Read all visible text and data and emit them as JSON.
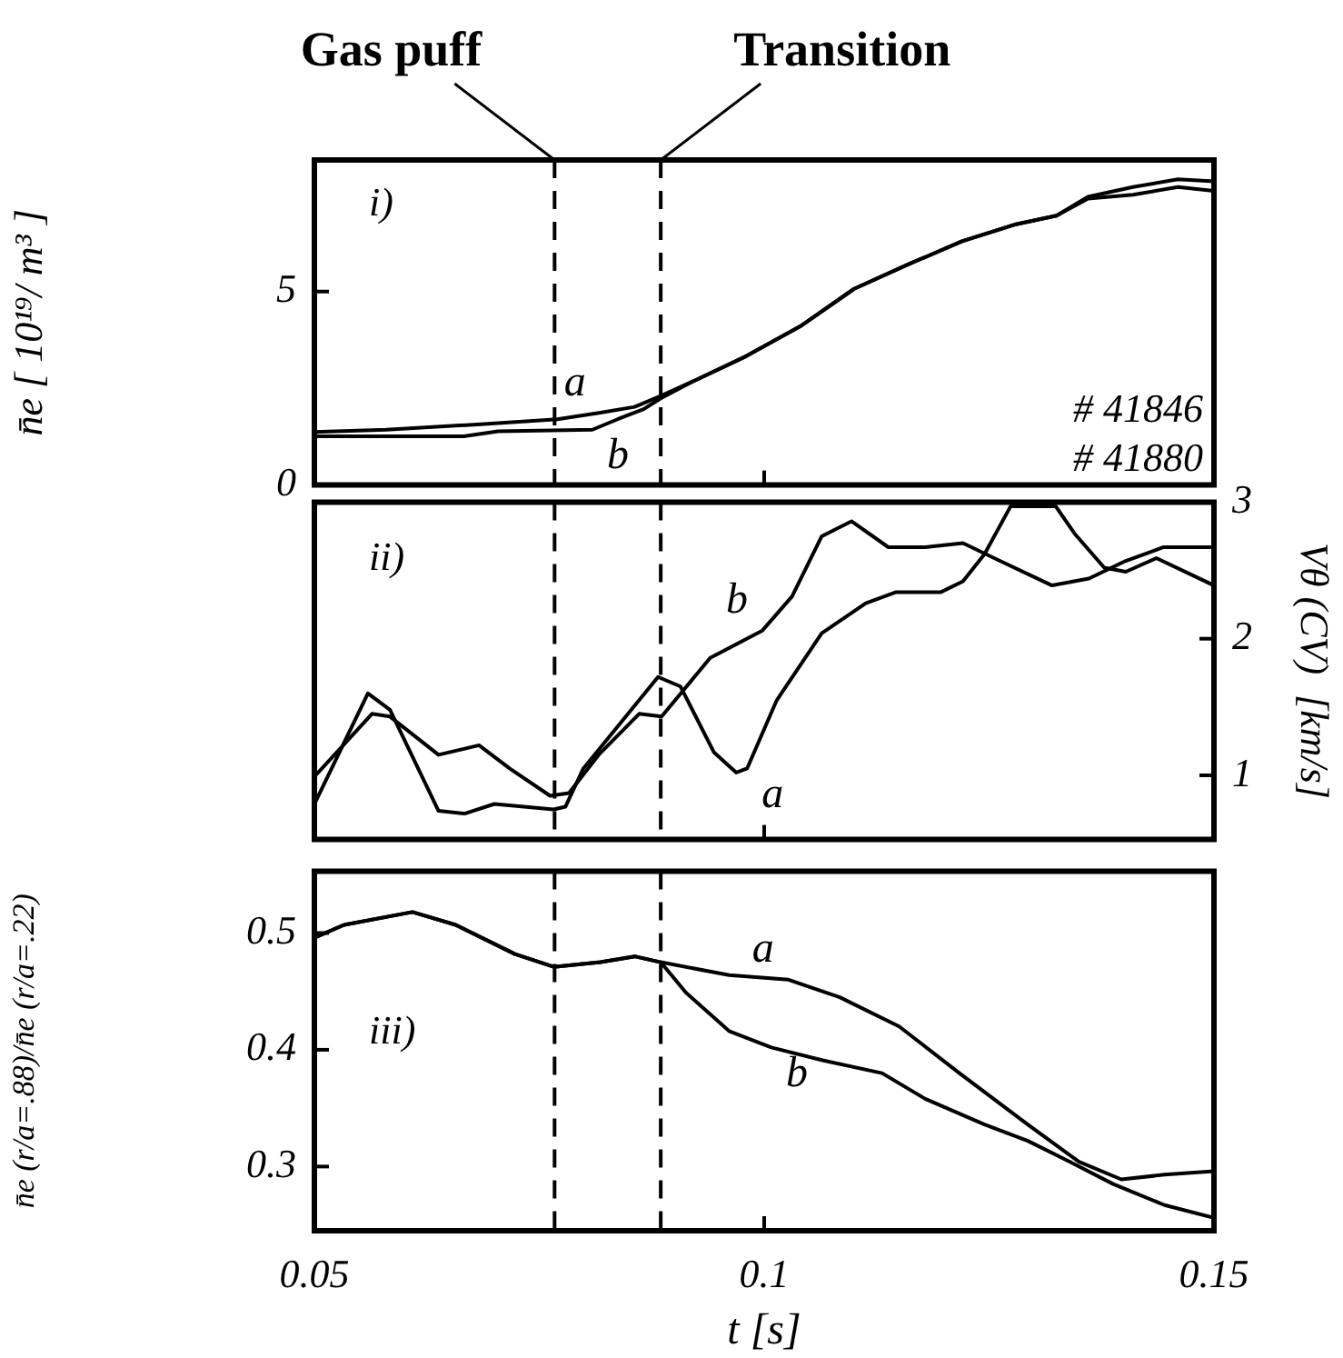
{
  "chart_data": [
    {
      "type": "line",
      "ylabel": "n̄e [ 10¹⁹/ m³ ]",
      "xlim": [
        0.05,
        0.15
      ],
      "xticks": [
        0.05,
        0.1,
        0.15
      ],
      "ylim": [
        0,
        8.4
      ],
      "yticks": [
        0,
        5
      ],
      "tick_labels": "y",
      "grid": false,
      "legend": false,
      "marker": "none",
      "line_style": "solid",
      "annotations": [
        "i)",
        "# 41846",
        "# 41880"
      ],
      "ref_lines": [
        {
          "axis": "x",
          "value": 0.0767,
          "label": "Gas puff",
          "line_style": "dashed",
          "color": "#000000"
        },
        {
          "axis": "x",
          "value": 0.0885,
          "label": "Transition",
          "line_style": "dashed",
          "color": "#000000"
        }
      ],
      "series": [
        {
          "name": "a",
          "color": "#000000",
          "x": [
            0.05,
            0.058,
            0.0685,
            0.077,
            0.0818,
            0.0856,
            0.0885,
            0.092,
            0.098,
            0.104,
            0.11,
            0.116,
            0.122,
            0.128,
            0.1325,
            0.136,
            0.141,
            0.146,
            0.15
          ],
          "values": [
            1.37,
            1.43,
            1.57,
            1.7,
            1.87,
            2.02,
            2.3,
            2.67,
            3.33,
            4.1,
            5.07,
            5.7,
            6.3,
            6.74,
            6.96,
            7.45,
            7.7,
            7.9,
            7.85
          ]
        },
        {
          "name": "b",
          "color": "#000000",
          "x": [
            0.05,
            0.0666,
            0.0704,
            0.0809,
            0.0837,
            0.0866,
            0.0885,
            0.092,
            0.098,
            0.104,
            0.11,
            0.116,
            0.122,
            0.128,
            0.1325,
            0.136,
            0.141,
            0.146,
            0.15
          ],
          "values": [
            1.26,
            1.26,
            1.39,
            1.43,
            1.7,
            1.96,
            2.24,
            2.67,
            3.33,
            4.1,
            5.07,
            5.7,
            6.3,
            6.74,
            6.96,
            7.4,
            7.5,
            7.7,
            7.6
          ]
        }
      ]
    },
    {
      "type": "line",
      "ylabel": "Vθ (CV)  [km/s]",
      "xlim": [
        0.05,
        0.15
      ],
      "xticks": [
        0.05,
        0.1,
        0.15
      ],
      "ylim": [
        0.53,
        3
      ],
      "yticks": [
        1,
        2,
        3
      ],
      "tick_labels": "y",
      "grid": false,
      "legend": false,
      "marker": "none",
      "line_style": "solid",
      "annotations": [
        "ii)"
      ],
      "ref_lines": [
        {
          "axis": "x",
          "value": 0.0767,
          "line_style": "dashed",
          "color": "#000000"
        },
        {
          "axis": "x",
          "value": 0.0885,
          "line_style": "dashed",
          "color": "#000000"
        }
      ],
      "series": [
        {
          "name": "a",
          "color": "#000000",
          "x": [
            0.05,
            0.05595,
            0.0584,
            0.0638,
            0.0667,
            0.07,
            0.0766,
            0.0779,
            0.0799,
            0.0861,
            0.0882,
            0.0907,
            0.0944,
            0.0969,
            0.0981,
            0.1014,
            0.1064,
            0.1113,
            0.1146,
            0.1196,
            0.1221,
            0.1245,
            0.1274,
            0.1324,
            0.1345,
            0.1378,
            0.1402,
            0.1436,
            0.15
          ],
          "values": [
            0.79,
            1.6,
            1.48,
            0.74,
            0.72,
            0.79,
            0.75,
            0.77,
            1.05,
            1.55,
            1.72,
            1.65,
            1.17,
            1.02,
            1.05,
            1.55,
            2.04,
            2.26,
            2.34,
            2.34,
            2.42,
            2.62,
            2.97,
            2.97,
            2.77,
            2.52,
            2.49,
            2.59,
            2.39
          ]
        },
        {
          "name": "b",
          "color": "#000000",
          "x": [
            0.05,
            0.0564,
            0.0584,
            0.0638,
            0.0683,
            0.0717,
            0.0762,
            0.0783,
            0.0816,
            0.0861,
            0.0886,
            0.094,
            0.0998,
            0.1031,
            0.1064,
            0.1097,
            0.1138,
            0.1179,
            0.1221,
            0.1262,
            0.132,
            0.1361,
            0.1402,
            0.1444,
            0.15
          ],
          "values": [
            0.99,
            1.45,
            1.43,
            1.15,
            1.22,
            1.05,
            0.85,
            0.87,
            1.15,
            1.45,
            1.43,
            1.86,
            2.06,
            2.31,
            2.75,
            2.86,
            2.67,
            2.67,
            2.7,
            2.57,
            2.39,
            2.44,
            2.57,
            2.67,
            2.67
          ]
        }
      ]
    },
    {
      "type": "line",
      "xlabel": "t [s]",
      "ylabel": "n̄e (r/a=.88)/n̄e (r/a=.22)",
      "xlim": [
        0.05,
        0.15
      ],
      "xticks": [
        0.05,
        0.1,
        0.15
      ],
      "ylim": [
        0.245,
        0.553
      ],
      "yticks": [
        0.3,
        0.4,
        0.5
      ],
      "grid": false,
      "legend": false,
      "marker": "none",
      "line_style": "solid",
      "annotations": [
        "iii)"
      ],
      "ref_lines": [
        {
          "axis": "x",
          "value": 0.0767,
          "line_style": "dashed",
          "color": "#000000"
        },
        {
          "axis": "x",
          "value": 0.0885,
          "line_style": "dashed",
          "color": "#000000"
        }
      ],
      "series": [
        {
          "name": "a",
          "color": "#000000",
          "x": [
            0.05,
            0.0533,
            0.0609,
            0.0657,
            0.0723,
            0.0766,
            0.0818,
            0.0856,
            0.0885,
            0.0961,
            0.1027,
            0.1084,
            0.115,
            0.1217,
            0.1293,
            0.135,
            0.1397,
            0.1445,
            0.15
          ],
          "values": [
            0.496,
            0.507,
            0.518,
            0.507,
            0.482,
            0.471,
            0.475,
            0.48,
            0.475,
            0.464,
            0.46,
            0.445,
            0.42,
            0.38,
            0.336,
            0.304,
            0.289,
            0.293,
            0.296
          ]
        },
        {
          "name": "b",
          "color": "#000000",
          "x": [
            0.05,
            0.0533,
            0.0609,
            0.0657,
            0.0723,
            0.0766,
            0.0818,
            0.0856,
            0.0885,
            0.0913,
            0.0961,
            0.1008,
            0.1065,
            0.1131,
            0.1179,
            0.1245,
            0.1293,
            0.134,
            0.1388,
            0.1445,
            0.15
          ],
          "values": [
            0.496,
            0.507,
            0.518,
            0.507,
            0.482,
            0.471,
            0.475,
            0.48,
            0.475,
            0.449,
            0.416,
            0.402,
            0.391,
            0.38,
            0.358,
            0.336,
            0.322,
            0.304,
            0.285,
            0.267,
            0.256
          ]
        }
      ]
    }
  ]
}
